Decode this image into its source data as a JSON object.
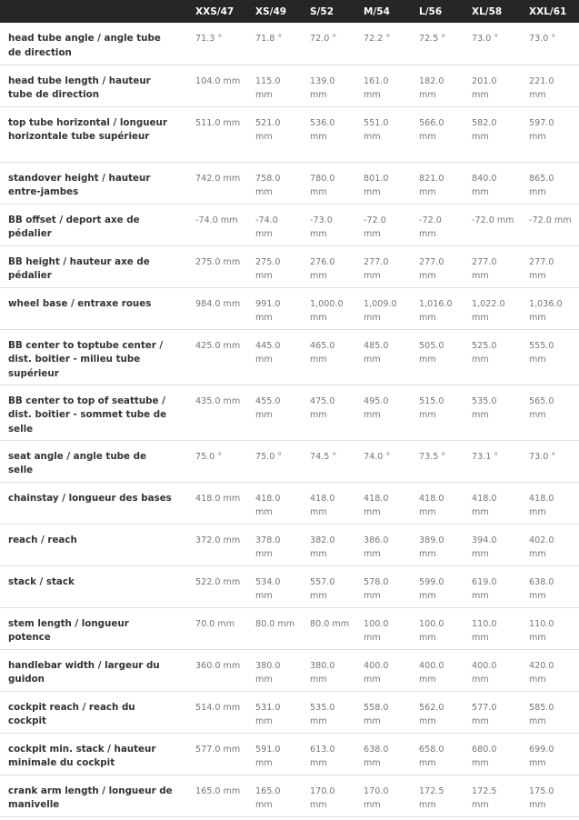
{
  "columns": [
    "XXS/47",
    "XS/49",
    "S/52",
    "M/54",
    "L/56",
    "XL/58",
    "XXL/61"
  ],
  "rows": [
    {
      "label": "head tube angle / angle tube de direction",
      "values": [
        "71.3 °",
        "71.8 °",
        "72.0 °",
        "72.2 °",
        "72.5 °",
        "73.0 °",
        "73.0 °"
      ]
    },
    {
      "label": "head tube length / hauteur tube de direction",
      "values": [
        "104.0 mm",
        "115.0 mm",
        "139.0 mm",
        "161.0 mm",
        "182.0 mm",
        "201.0 mm",
        "221.0 mm"
      ]
    },
    {
      "label": "top tube horizontal / longueur horizontale tube supérieur",
      "values": [
        "511.0 mm",
        "521.0 mm",
        "536.0 mm",
        "551.0 mm",
        "566.0 mm",
        "582.0 mm",
        "597.0 mm"
      ]
    },
    {
      "label": "standover height / hauteur entre-jambes",
      "values": [
        "742.0 mm",
        "758.0 mm",
        "780.0 mm",
        "801.0 mm",
        "821.0 mm",
        "840.0 mm",
        "865.0 mm"
      ]
    },
    {
      "label": "BB offset / deport axe de pédalier",
      "values": [
        "-74.0 mm",
        "-74.0 mm",
        "-73.0 mm",
        "-72.0 mm",
        "-72.0 mm",
        "-72.0 mm",
        "-72.0 mm"
      ]
    },
    {
      "label": "BB height / hauteur axe de pédalier",
      "values": [
        "275.0 mm",
        "275.0 mm",
        "276.0 mm",
        "277.0 mm",
        "277.0 mm",
        "277.0 mm",
        "277.0 mm"
      ]
    },
    {
      "label": "wheel base / entraxe roues",
      "values": [
        "984.0 mm",
        "991.0 mm",
        "1,000.0 mm",
        "1,009.0 mm",
        "1,016.0 mm",
        "1,022.0 mm",
        "1,036.0 mm"
      ]
    },
    {
      "label": "BB center to toptube center / dist. boitier - milieu tube supérieur",
      "values": [
        "425.0 mm",
        "445.0 mm",
        "465.0 mm",
        "485.0 mm",
        "505.0 mm",
        "525.0 mm",
        "555.0 mm"
      ]
    },
    {
      "label": "BB center to top of seattube / dist. boitier - sommet tube de selle",
      "values": [
        "435.0 mm",
        "455.0 mm",
        "475.0 mm",
        "495.0 mm",
        "515.0 mm",
        "535.0 mm",
        "565.0 mm"
      ]
    },
    {
      "label": "seat angle / angle tube de selle",
      "values": [
        "75.0 °",
        "75.0 °",
        "74.5 °",
        "74.0 °",
        "73.5 °",
        "73.1 °",
        "73.0 °"
      ]
    },
    {
      "label": "chainstay / longueur des bases",
      "values": [
        "418.0 mm",
        "418.0 mm",
        "418.0 mm",
        "418.0 mm",
        "418.0 mm",
        "418.0 mm",
        "418.0 mm"
      ]
    },
    {
      "label": "reach / reach",
      "values": [
        "372.0 mm",
        "378.0 mm",
        "382.0 mm",
        "386.0 mm",
        "389.0 mm",
        "394.0 mm",
        "402.0 mm"
      ]
    },
    {
      "label": "stack / stack",
      "values": [
        "522.0 mm",
        "534.0 mm",
        "557.0 mm",
        "578.0 mm",
        "599.0 mm",
        "619.0 mm",
        "638.0 mm"
      ]
    },
    {
      "label": "stem length / longueur potence",
      "values": [
        "70.0 mm",
        "80.0 mm",
        "80.0 mm",
        "100.0 mm",
        "100.0 mm",
        "110.0 mm",
        "110.0 mm"
      ]
    },
    {
      "label": "handlebar width / largeur du guidon",
      "values": [
        "360.0 mm",
        "380.0 mm",
        "380.0 mm",
        "400.0 mm",
        "400.0 mm",
        "400.0 mm",
        "420.0 mm"
      ]
    },
    {
      "label": "cockpit reach / reach du cockpit",
      "values": [
        "514.0 mm",
        "531.0 mm",
        "535.0 mm",
        "558.0 mm",
        "562.0 mm",
        "577.0 mm",
        "585.0 mm"
      ]
    },
    {
      "label": "cockpit min. stack / hauteur minimale du cockpit",
      "values": [
        "577.0 mm",
        "591.0 mm",
        "613.0 mm",
        "638.0 mm",
        "658.0 mm",
        "680.0 mm",
        "699.0 mm"
      ]
    },
    {
      "label": "crank arm length / longueur de manivelle",
      "values": [
        "165.0 mm",
        "165.0 mm",
        "170.0 mm",
        "170.0 mm",
        "172.5 mm",
        "172.5 mm",
        "175.0 mm"
      ]
    }
  ]
}
